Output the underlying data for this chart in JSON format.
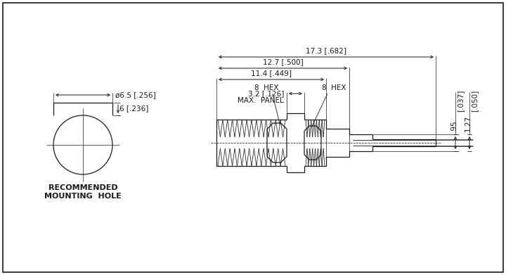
{
  "bg_color": "#ffffff",
  "line_color": "#1a1a1a",
  "fig_width": 7.2,
  "fig_height": 3.91,
  "dim_labels": {
    "dia_top": "ø6.5 [.256]",
    "dia_mid": "6 [.236]",
    "hex1": "8  HEX",
    "hex2": "8  HEX",
    "panel_dim": "3.2 [.126]",
    "panel_label": "MAX.  PANEL",
    "dim1": "11.4 [.449]",
    "dim2": "12.7 [.500]",
    "dim3": "17.3 [.682]",
    "right1": ".95",
    "right2": "1.27",
    "right3": "[.037]",
    "right4": "[.050]"
  },
  "rec_mount_text": [
    "RECOMMENDED",
    "MOUNTING  HOLE"
  ]
}
